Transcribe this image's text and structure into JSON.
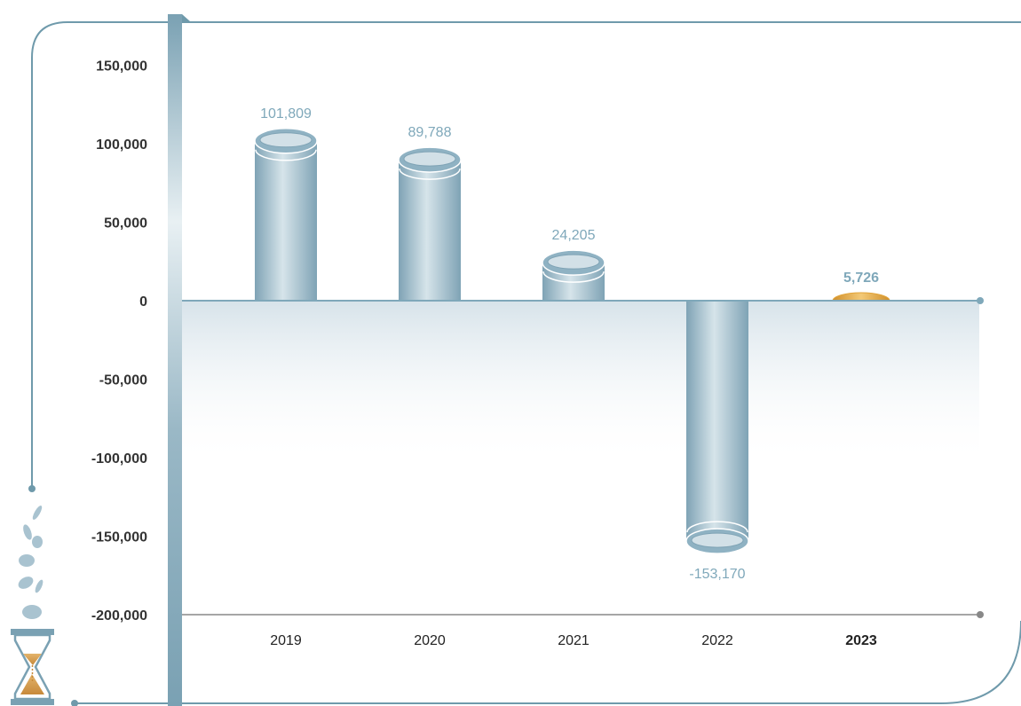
{
  "colors": {
    "frame": "#6f9aab",
    "bar": "#8fb2c3",
    "bar_light": "#d2e0e7",
    "highlight": "#e3a53a",
    "highlight_label": "#d98f2c",
    "highlight_axis_label": "#6f9aab",
    "value_label": "#7fa8ba",
    "tick_label": "#333333",
    "coin": "#a9c3d0",
    "sand": "#d9a55a"
  },
  "icons": [
    "falling-coins-icon",
    "hourglass-icon"
  ],
  "chart_data": {
    "type": "bar",
    "categories": [
      "2019",
      "2020",
      "2021",
      "2022",
      "2023"
    ],
    "values": [
      101809,
      89788,
      24205,
      -153170,
      5726
    ],
    "data_labels": [
      "101,809",
      "89,788",
      "24,205",
      "-153,170",
      "5,726"
    ],
    "highlight_category": "2023",
    "y_ticks": [
      150000,
      100000,
      50000,
      0,
      -50000,
      -100000,
      -150000,
      -200000
    ],
    "y_tick_labels": [
      "150,000",
      "100,000",
      "50,000",
      "0",
      "-50,000",
      "-100,000",
      "-150,000",
      "-200,000"
    ],
    "ylim": [
      -210000,
      165000
    ],
    "grid": false,
    "title": "",
    "xlabel": "",
    "ylabel": ""
  }
}
